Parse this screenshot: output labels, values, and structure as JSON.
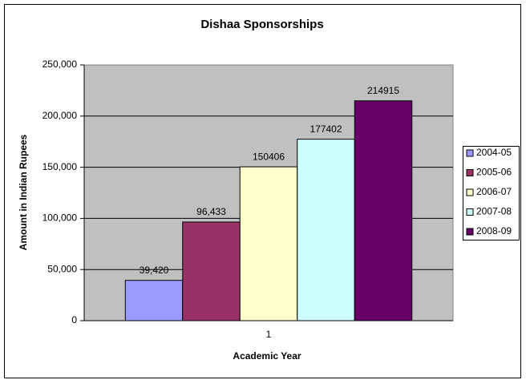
{
  "chart_data": {
    "type": "bar",
    "title": "Dishaa Sponsorships",
    "xlabel": "Academic Year",
    "ylabel": "Amount in Indian Rupees",
    "categories": [
      "1"
    ],
    "series": [
      {
        "name": "2004-05",
        "color": "#9999ff",
        "values": [
          39420
        ],
        "value_labels": [
          "39,420"
        ]
      },
      {
        "name": "2005-06",
        "color": "#993366",
        "values": [
          96433
        ],
        "value_labels": [
          "96,433"
        ]
      },
      {
        "name": "2006-07",
        "color": "#ffffcc",
        "values": [
          150406
        ]
      },
      {
        "name": "2007-08",
        "color": "#ccffff",
        "values": [
          177402
        ]
      },
      {
        "name": "2008-09",
        "color": "#660066",
        "values": [
          214915
        ]
      }
    ],
    "ylim": [
      0,
      250000
    ],
    "yticks": [
      0,
      {
        "value": 50000,
        "label": "50,000"
      },
      {
        "value": 100000,
        "label": "100,000"
      },
      {
        "value": 150000,
        "label": "150,000"
      },
      {
        "value": 200000,
        "label": "200,000"
      },
      {
        "value": 250000,
        "label": "250,000"
      }
    ],
    "grid": true,
    "legend": "right"
  }
}
